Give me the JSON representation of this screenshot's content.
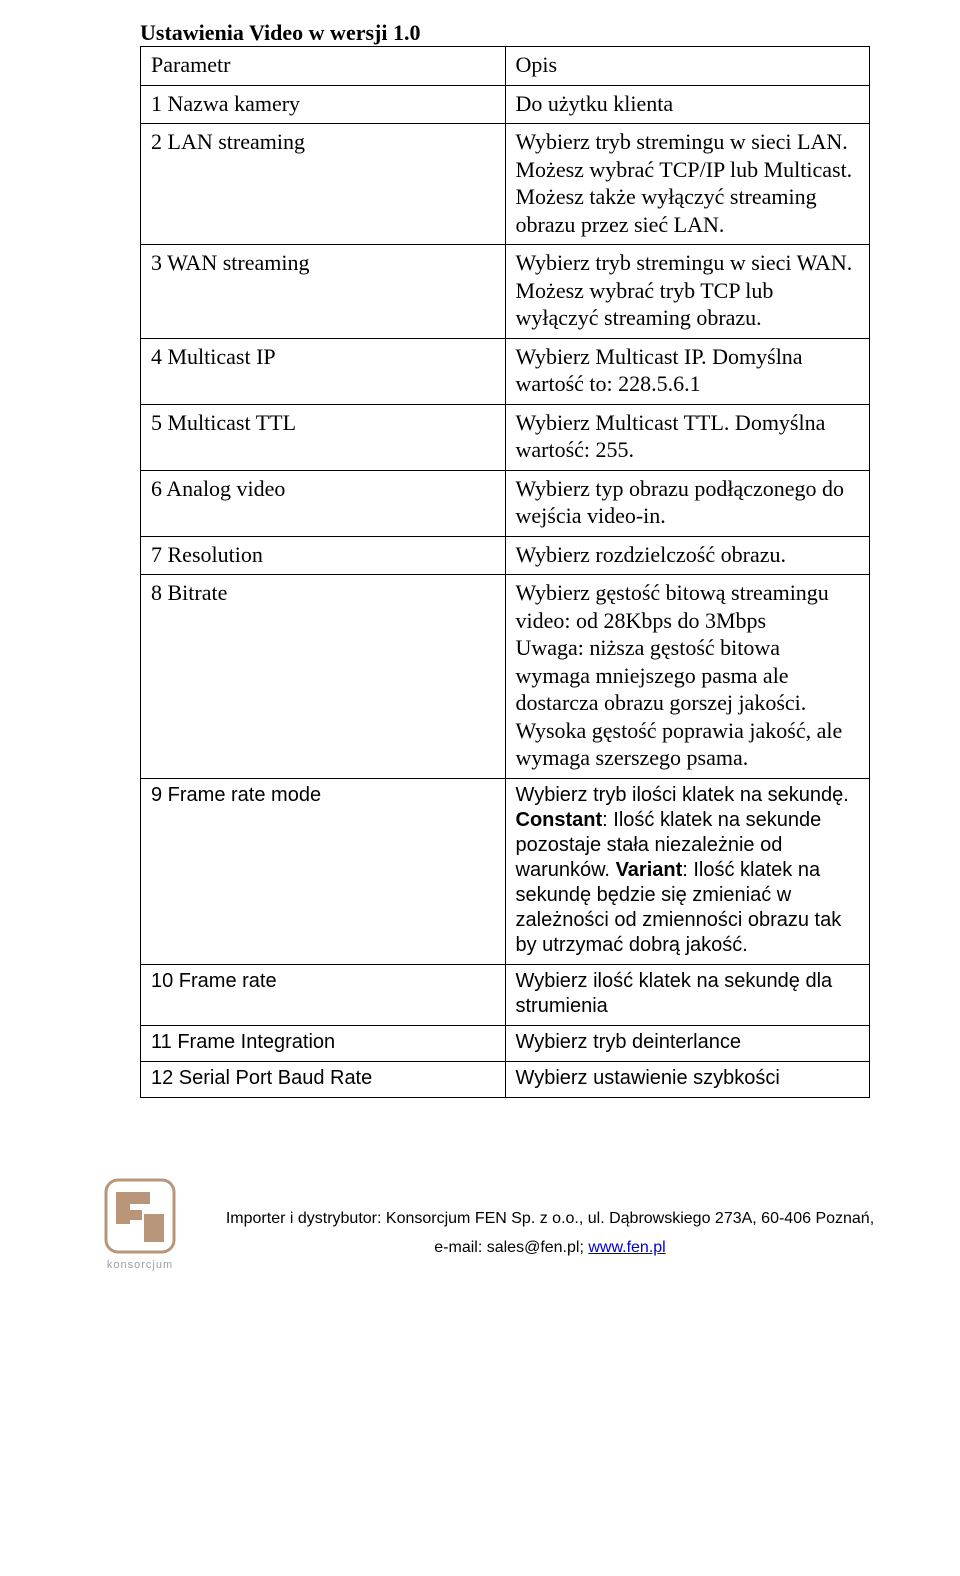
{
  "title": "Ustawienia Video w wersji 1.0",
  "header": {
    "param": "Parametr",
    "desc": "Opis"
  },
  "rows": [
    {
      "p": "1 Nazwa kamery",
      "d": "Do użytku klienta"
    },
    {
      "p": "2 LAN streaming",
      "d": "Wybierz tryb stremingu w sieci LAN.\nMożesz wybrać TCP/IP lub Multicast.\nMożesz także wyłączyć streaming obrazu przez sieć LAN."
    },
    {
      "p": "3 WAN streaming",
      "d": "Wybierz tryb stremingu w sieci WAN.\nMożesz wybrać tryb TCP lub wyłączyć streaming obrazu."
    },
    {
      "p": "4 Multicast IP",
      "d": "Wybierz Multicast IP. Domyślna wartość to: 228.5.6.1"
    },
    {
      "p": "5 Multicast TTL",
      "d": "Wybierz Multicast TTL. Domyślna wartość: 255."
    },
    {
      "p": "6 Analog video",
      "d": "Wybierz typ obrazu podłączonego do wejścia video-in."
    },
    {
      "p": "7 Resolution",
      "d": "Wybierz rozdzielczość obrazu."
    },
    {
      "p": "8 Bitrate",
      "d": "Wybierz gęstość bitową streamingu video: od 28Kbps do 3Mbps\nUwaga: niższa gęstość bitowa wymaga mniejszego pasma ale dostarcza obrazu gorszej jakości. Wysoka gęstość poprawia jakość, ale wymaga szerszego psama."
    }
  ],
  "row9": {
    "p_arial": "9 Frame rate mode",
    "d_part1": "Wybierz tryb ilości klatek na sekundę. ",
    "d_bold1": "Constant",
    "d_part2": ": Ilość klatek na sekunde pozostaje stała niezależnie od warunków. ",
    "d_bold2": "Variant",
    "d_part3": ": Ilość klatek na sekundę będzie się zmieniać w zależności od zmienności obrazu tak by utrzymać dobrą jakość."
  },
  "row10": {
    "p": "10 Frame rate",
    "d": "Wybierz ilość klatek na sekundę dla strumienia"
  },
  "row11": {
    "p": "11 Frame Integration",
    "d": "Wybierz tryb deinterlance"
  },
  "row12": {
    "p": "12 Serial Port Baud Rate",
    "d": "Wybierz ustawienie szybkości"
  },
  "footer": {
    "line1": "Importer i dystrybutor: Konsorcjum FEN Sp. z o.o., ul. Dąbrowskiego 273A, 60-406 Poznań,",
    "line2a": "e-mail: sales@fen.pl; ",
    "link": "www.fen.pl"
  },
  "logo": {
    "fill": "#b9967a",
    "text": "konsorcjum",
    "text_color": "#9aa0a6"
  }
}
